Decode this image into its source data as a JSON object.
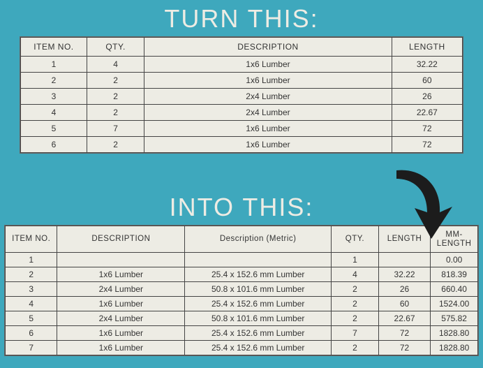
{
  "headings": {
    "turn_this": "TURN THIS:",
    "into_this": "INTO THIS:"
  },
  "colors": {
    "page_bg": "#3ea8bd",
    "table_bg": "#edece4",
    "border": "#444444",
    "heading_text": "#edece4",
    "cell_text": "#333333",
    "arrow_fill": "#1c1c1c"
  },
  "table1": {
    "columns": [
      "ITEM NO.",
      "QTY.",
      "DESCRIPTION",
      "LENGTH"
    ],
    "col_widths_pct": [
      15,
      13,
      56,
      16
    ],
    "rows": [
      [
        "1",
        "4",
        "1x6 Lumber",
        "32.22"
      ],
      [
        "2",
        "2",
        "1x6 Lumber",
        "60"
      ],
      [
        "3",
        "2",
        "2x4 Lumber",
        "26"
      ],
      [
        "4",
        "2",
        "2x4 Lumber",
        "22.67"
      ],
      [
        "5",
        "7",
        "1x6 Lumber",
        "72"
      ],
      [
        "6",
        "2",
        "1x6 Lumber",
        "72"
      ]
    ]
  },
  "table2": {
    "columns": [
      "ITEM NO.",
      "DESCRIPTION",
      "Description (Metric)",
      "QTY.",
      "LENGTH",
      "MM-LENGTH"
    ],
    "col_widths_pct": [
      11,
      27,
      31,
      10,
      11,
      10
    ],
    "rows": [
      [
        "1",
        "",
        "",
        "1",
        "",
        "0.00"
      ],
      [
        "2",
        "1x6 Lumber",
        "25.4 x 152.6 mm Lumber",
        "4",
        "32.22",
        "818.39"
      ],
      [
        "3",
        "2x4 Lumber",
        "50.8 x 101.6 mm Lumber",
        "2",
        "26",
        "660.40"
      ],
      [
        "4",
        "1x6 Lumber",
        "25.4 x 152.6 mm Lumber",
        "2",
        "60",
        "1524.00"
      ],
      [
        "5",
        "2x4 Lumber",
        "50.8 x 101.6 mm Lumber",
        "2",
        "22.67",
        "575.82"
      ],
      [
        "6",
        "1x6 Lumber",
        "25.4 x 152.6 mm Lumber",
        "7",
        "72",
        "1828.80"
      ],
      [
        "7",
        "1x6 Lumber",
        "25.4 x 152.6 mm Lumber",
        "2",
        "72",
        "1828.80"
      ]
    ]
  }
}
